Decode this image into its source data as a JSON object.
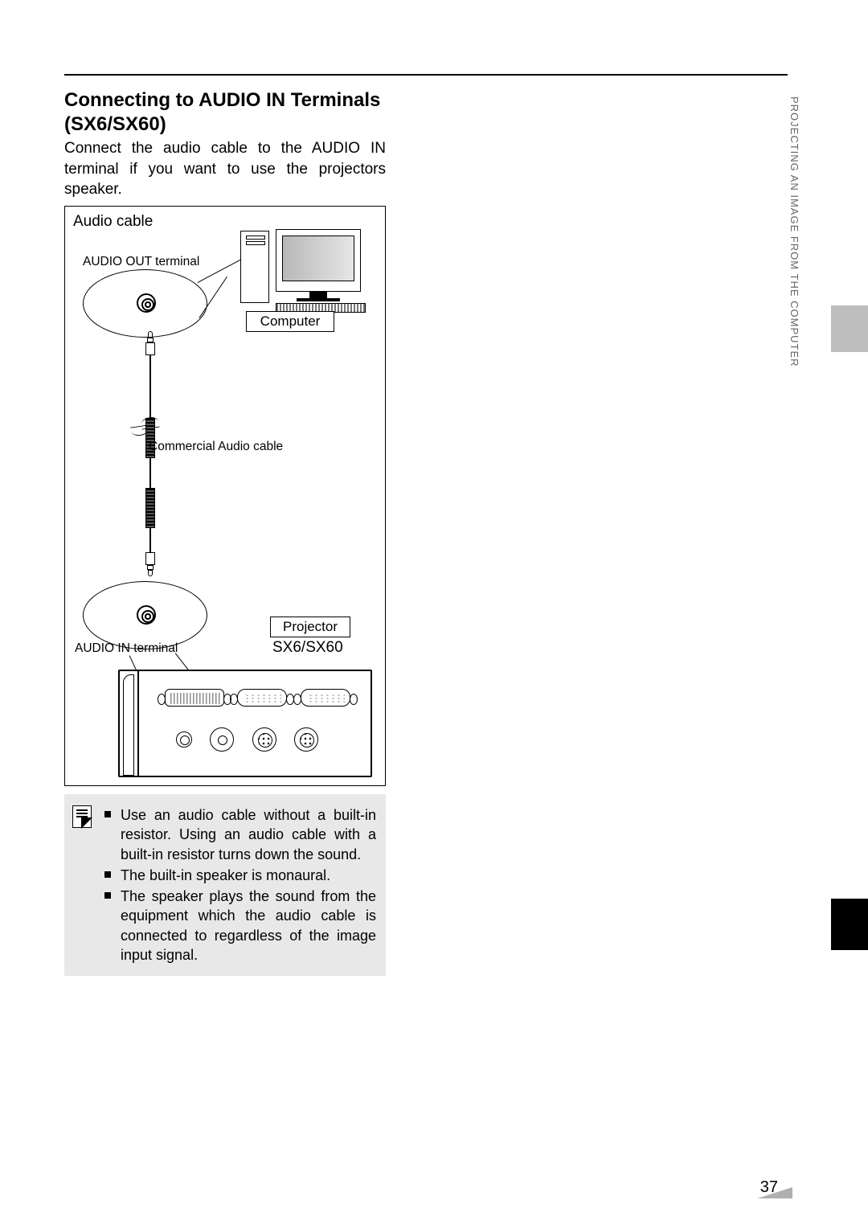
{
  "page": {
    "number": "37",
    "side_text": "PROJECTING AN IMAGE FROM THE COMPUTER"
  },
  "heading": "Connecting to AUDIO IN Terminals (SX6/SX60)",
  "intro": "Connect the audio cable to the AUDIO IN terminal if you want to use the projectors speaker.",
  "figure": {
    "title": "Audio cable",
    "labels": {
      "audio_out": "AUDIO OUT terminal",
      "cable": "Commercial Audio cable",
      "audio_in": "AUDIO IN terminal",
      "computer": "Computer",
      "projector": "Projector",
      "model": "SX6/SX60"
    }
  },
  "notes": {
    "items": [
      "Use an audio cable without a built-in resistor. Using an audio cable with a built-in resistor turns down the sound.",
      "The built-in speaker is monaural.",
      "The speaker plays the sound from the equipment which the audio cable is connected to regardless of the image input signal."
    ]
  }
}
